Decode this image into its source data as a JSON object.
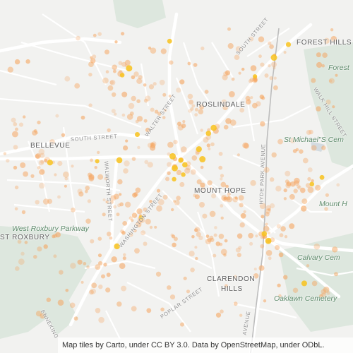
{
  "map": {
    "tile_provider": "Carto",
    "heat_color": "#f5a35c",
    "hot_color": "#f8c21c",
    "park_color": "#dde7de",
    "road_color": "#ffffff",
    "rail_color": "#b9b9b9"
  },
  "labels": {
    "forest_hills": "FOREST HILLS",
    "forest": "Forest",
    "south_street_ne": "SOUTH STREET",
    "roslindale": "ROSLINDALE",
    "walk_hill_street": "WALK HILL STREET",
    "st_michaels": "St Michael\"S Cem",
    "walter_street": "WALTER STREET",
    "south_street_w": "SOUTH STREET",
    "bellevue": "BELLEVUE",
    "mount_hope": "MOUNT HOPE",
    "hyde_park_avenue": "HYDE PARK AVENUE",
    "mount_h": "Mount H",
    "walworth_street": "WALWORTH STREET",
    "washington_street": "WASHINGTON STREET",
    "west_roxbury_parkway": "West Roxbury Parkway",
    "st_roxbury": "ST ROXBURY",
    "calvary_cem": "Calvary Cem",
    "clarendon_hills_1": "CLARENDON",
    "clarendon_hills_2": "HILLS",
    "oaklawn_cemetery": "Oaklawn Cemetery",
    "poplar_street": "POPLAR STREET",
    "avenue": "AVENUE",
    "enneking": "ENNEKING"
  },
  "attribution": "Map tiles by Carto, under CC BY 3.0. Data by OpenStreetMap, under ODbL."
}
